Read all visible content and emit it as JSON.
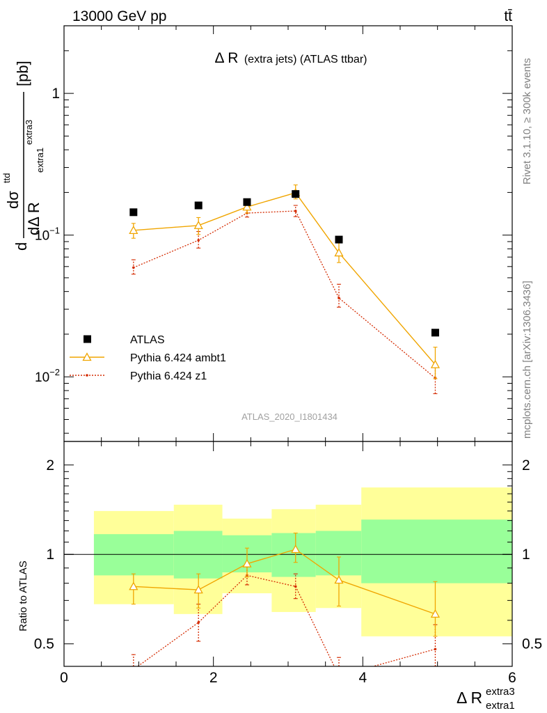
{
  "header": {
    "left": "13000 GeV pp",
    "right": "tt̄"
  },
  "side_labels": {
    "rivet": "Rivet 3.1.10, ≥ 300k events",
    "mcplots": "mcplots.cern.ch [arXiv:1306.3436]"
  },
  "watermark": "ATLAS_2020_I1801434",
  "colors": {
    "atlas": "#000000",
    "ambt1": "#f0a500",
    "z1": "#d42a00",
    "band_green": "#99ff99",
    "band_yellow": "#ffff99"
  },
  "chart_data": [
    {
      "type": "scatter",
      "title": "Δ R (extra jets) (ATLAS ttbar)",
      "title_main": "Δ R",
      "title_sub": "(extra jets) (ATLAS ttbar)",
      "ylabel_parts": {
        "d": "d",
        "sigma": "dσ",
        "sigma_sup": "ttd",
        "denom": "dΔ R",
        "denom_sub": "extra1",
        "denom_sup": "extra3",
        "unit": "[pb]"
      },
      "yscale": "log",
      "ylim": [
        0.0035,
        3.0
      ],
      "xlim": [
        0,
        6
      ],
      "y_tick_labels": [
        {
          "value": 1,
          "base": "1",
          "exp": ""
        },
        {
          "value": 0.1,
          "base": "10",
          "exp": "−1"
        },
        {
          "value": 0.01,
          "base": "10",
          "exp": "−2"
        }
      ],
      "legend_placement": "bottom-left",
      "series": [
        {
          "name": "ATLAS",
          "style": "square",
          "x": [
            0.93,
            1.8,
            2.45,
            3.1,
            3.68,
            4.97
          ],
          "y": [
            0.145,
            0.162,
            0.171,
            0.195,
            0.093,
            0.0205
          ],
          "yerr_lo": [
            0,
            0,
            0,
            0,
            0,
            0
          ],
          "yerr_hi": [
            0,
            0,
            0,
            0,
            0,
            0
          ]
        },
        {
          "name": "Pythia 6.424 ambt1",
          "style": "triangle",
          "x": [
            0.93,
            1.8,
            2.45,
            3.1,
            3.68,
            4.97
          ],
          "y": [
            0.108,
            0.117,
            0.158,
            0.199,
            0.075,
            0.0122
          ],
          "yerr_lo": [
            0.013,
            0.016,
            0.015,
            0.019,
            0.011,
            0.0025
          ],
          "yerr_hi": [
            0.013,
            0.016,
            0.015,
            0.027,
            0.016,
            0.004
          ]
        },
        {
          "name": "Pythia 6.424 z1",
          "style": "dot",
          "x": [
            0.93,
            1.8,
            2.45,
            3.1,
            3.68,
            4.97
          ],
          "y": [
            0.059,
            0.092,
            0.143,
            0.148,
            0.036,
            0.0098
          ],
          "yerr_lo": [
            0.006,
            0.011,
            0.009,
            0.013,
            0.005,
            0.0022
          ],
          "yerr_hi": [
            0.008,
            0.014,
            0.012,
            0.014,
            0.009,
            0.0025
          ]
        }
      ]
    },
    {
      "type": "scatter",
      "ylabel": "Ratio to ATLAS",
      "xlabel": "Δ R",
      "xlabel_sup": "extra3",
      "xlabel_sub": "extra1",
      "xlim": [
        0,
        6
      ],
      "ylim": [
        0.42,
        2.4
      ],
      "yscale": "log",
      "x_tick_labels": [
        "0",
        "2",
        "4",
        "6"
      ],
      "y_tick_labels": [
        "0.5",
        "1",
        "2"
      ],
      "bands": [
        {
          "x0": 0.4,
          "x1": 1.47,
          "green": [
            0.85,
            1.17
          ],
          "yellow": [
            0.68,
            1.4
          ]
        },
        {
          "x0": 1.47,
          "x1": 2.12,
          "green": [
            0.83,
            1.2
          ],
          "yellow": [
            0.63,
            1.47
          ]
        },
        {
          "x0": 2.12,
          "x1": 2.78,
          "green": [
            0.87,
            1.16
          ],
          "yellow": [
            0.74,
            1.32
          ]
        },
        {
          "x0": 2.78,
          "x1": 3.37,
          "green": [
            0.84,
            1.18
          ],
          "yellow": [
            0.64,
            1.42
          ]
        },
        {
          "x0": 3.37,
          "x1": 3.98,
          "green": [
            0.85,
            1.2
          ],
          "yellow": [
            0.66,
            1.47
          ]
        },
        {
          "x0": 3.98,
          "x1": 6.0,
          "green": [
            0.8,
            1.31
          ],
          "yellow": [
            0.53,
            1.68
          ]
        }
      ],
      "series": [
        {
          "name": "Pythia 6.424 ambt1",
          "style": "triangle",
          "x": [
            0.93,
            1.8,
            2.45,
            3.1,
            3.68,
            4.97
          ],
          "y": [
            0.78,
            0.76,
            0.93,
            1.04,
            0.82,
            0.63
          ],
          "yerr_lo": [
            0.1,
            0.1,
            0.09,
            0.1,
            0.15,
            0.1
          ],
          "yerr_hi": [
            0.08,
            0.1,
            0.12,
            0.14,
            0.16,
            0.18
          ]
        },
        {
          "name": "Pythia 6.424 z1",
          "style": "dot",
          "x": [
            0.93,
            1.8,
            2.45,
            3.1,
            3.68,
            4.97
          ],
          "y": [
            0.41,
            0.59,
            0.85,
            0.78,
            0.39,
            0.48
          ],
          "yerr_lo": [
            0.04,
            0.08,
            0.06,
            0.07,
            0.05,
            0.08
          ],
          "yerr_hi": [
            0.05,
            0.09,
            0.06,
            0.08,
            0.06,
            0.1
          ]
        }
      ]
    }
  ]
}
